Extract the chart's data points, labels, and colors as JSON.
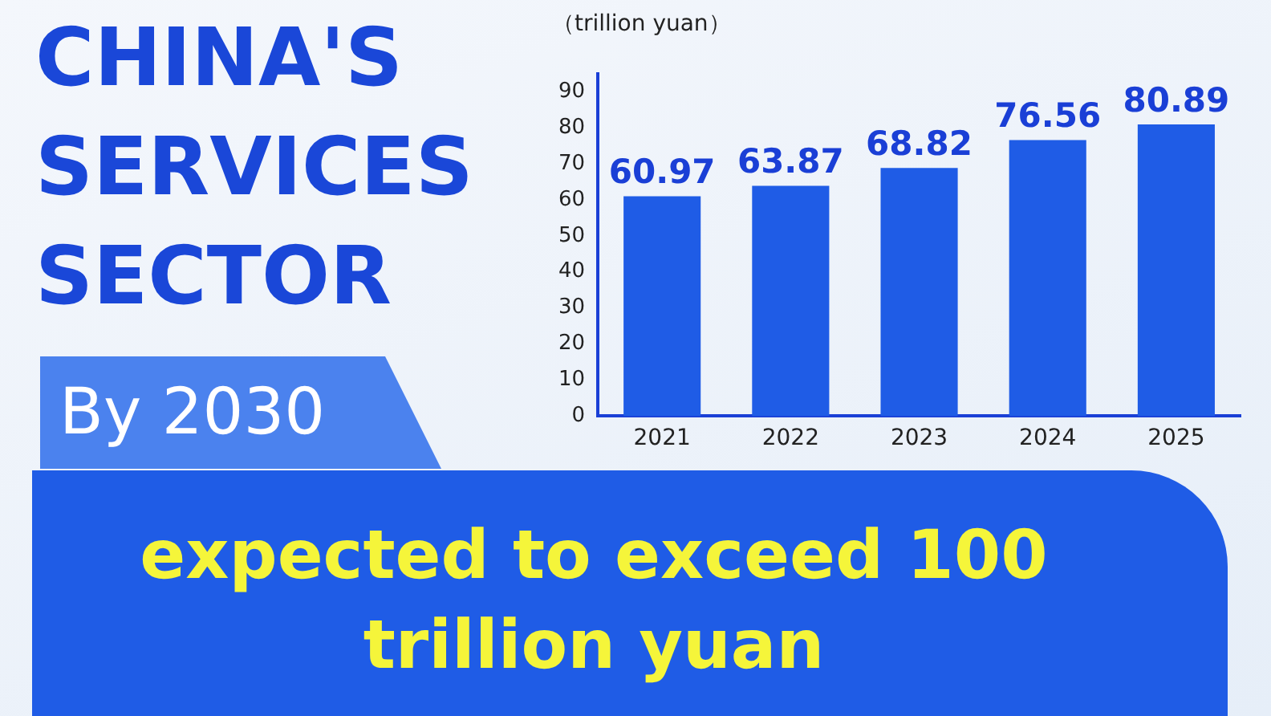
{
  "chart_data": {
    "type": "bar",
    "title": "CHINA'S SERVICES SECTOR",
    "ylabel": "（trillion yuan）",
    "categories": [
      "2021",
      "2022",
      "2023",
      "2024",
      "2025"
    ],
    "values": [
      60.97,
      63.87,
      68.82,
      76.56,
      80.89
    ],
    "color": "#1f5ce6",
    "ylim": [
      0,
      95
    ],
    "yticks": [
      0,
      10,
      20,
      30,
      40,
      50,
      60,
      70,
      80,
      90
    ],
    "grid": false,
    "data_labels": true,
    "annotations": [
      "By 2030",
      "expected to exceed 100 trillion yuan"
    ]
  }
}
